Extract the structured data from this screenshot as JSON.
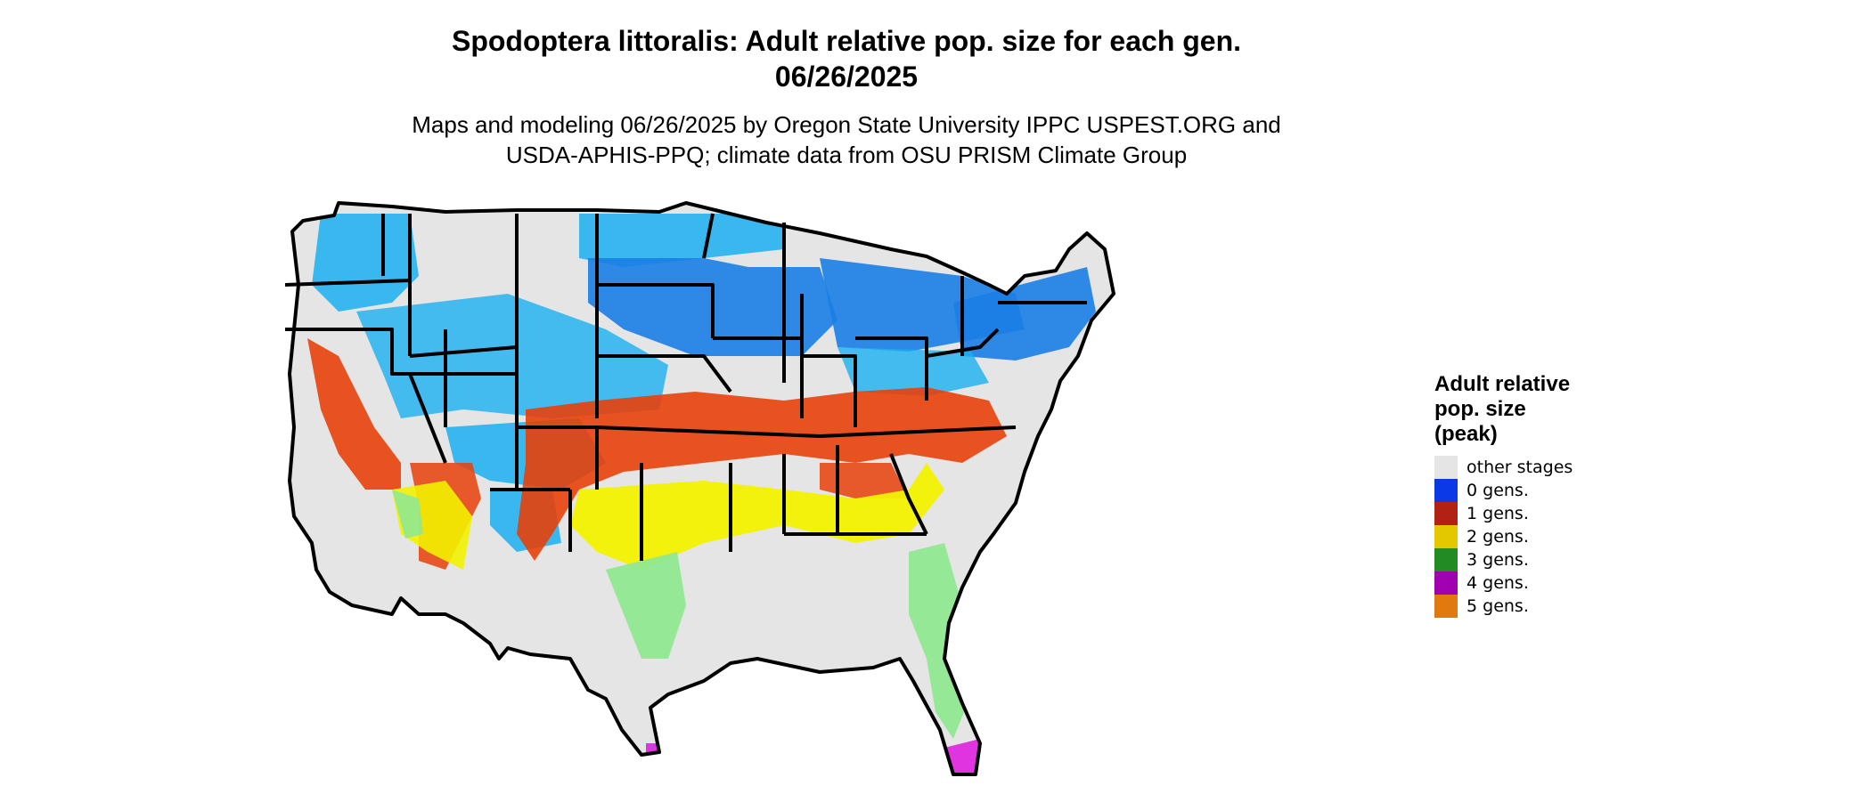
{
  "title": {
    "line1": "Spodoptera littoralis: Adult relative pop. size for each gen.",
    "line2": "06/26/2025"
  },
  "subtitle": {
    "line1": "Maps and modeling 06/26/2025 by Oregon State University IPPC USPEST.ORG and",
    "line2": "USDA-APHIS-PPQ; climate data from OSU PRISM Climate Group"
  },
  "legend": {
    "title_line1": "Adult relative",
    "title_line2": "pop. size",
    "title_line3": "(peak)",
    "items": [
      {
        "label": "other stages",
        "color": "#e5e5e5"
      },
      {
        "label": "0 gens.",
        "color": "#0a3ae6"
      },
      {
        "label": "1 gens.",
        "color": "#b22214"
      },
      {
        "label": "2 gens.",
        "color": "#e3c800"
      },
      {
        "label": "3 gens.",
        "color": "#238b23"
      },
      {
        "label": "4 gens.",
        "color": "#a000b0"
      },
      {
        "label": "5 gens.",
        "color": "#e07a10"
      }
    ]
  },
  "map_colors": {
    "background_fill": "#e5e5e5",
    "light_blue": "#1ab0f0",
    "mid_blue": "#1a7ee6",
    "red_orange": "#e8400a",
    "yellow": "#f2f200",
    "light_green": "#90e890",
    "magenta": "#e020e0",
    "border": "#000000"
  }
}
